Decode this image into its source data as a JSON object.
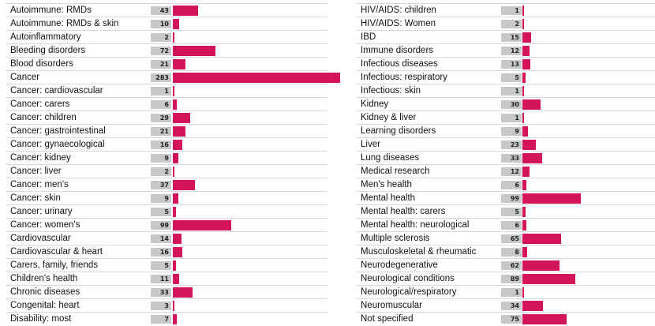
{
  "chart_data": {
    "type": "bar",
    "orientation": "horizontal",
    "bar_color": "#d4145a",
    "value_box_color": "#c8c8c8",
    "left_column": {
      "categories": [
        "Autoimmune: RMDs",
        "Autoimmune: RMDs & skin",
        "Autoinflammatory",
        "Bleeding disorders",
        "Blood disorders",
        "Cancer",
        "Cancer: cardiovascular",
        "Cancer: carers",
        "Cancer: children",
        "Cancer: gastrointestinal",
        "Cancer: gynaecological",
        "Cancer: kidney",
        "Cancer: liver",
        "Cancer: men's",
        "Cancer: skin",
        "Cancer: urinary",
        "Cancer: women's",
        "Cardiovascular",
        "Cardiovascular & heart",
        "Carers, family, friends",
        "Children's health",
        "Chronic diseases",
        "Congenital: heart",
        "Disability: most"
      ],
      "values": [
        43,
        10,
        2,
        72,
        21,
        283,
        1,
        6,
        29,
        21,
        16,
        9,
        2,
        37,
        9,
        5,
        99,
        14,
        16,
        5,
        11,
        33,
        3,
        7
      ]
    },
    "right_column": {
      "categories": [
        "HIV/AIDS: children",
        "HIV/AIDS: Women",
        "IBD",
        "Immune disorders",
        "Infectious diseases",
        "Infectious: respiratory",
        "Infectious: skin",
        "Kidney",
        "Kidney & liver",
        "Learning disorders",
        "Liver",
        "Lung diseases",
        "Medical research",
        "Men's health",
        "Mental health",
        "Mental health: carers",
        "Mental health: neurological",
        "Multiple sclerosis",
        "Musculoskeletal & rheumatic",
        "Neurodegenerative",
        "Neurological conditions",
        "Neurological/respiratory",
        "Neuromuscular",
        "Not specified"
      ],
      "values": [
        1,
        2,
        15,
        12,
        13,
        5,
        1,
        30,
        1,
        9,
        23,
        33,
        12,
        6,
        99,
        5,
        6,
        65,
        8,
        62,
        89,
        1,
        34,
        75
      ]
    }
  }
}
